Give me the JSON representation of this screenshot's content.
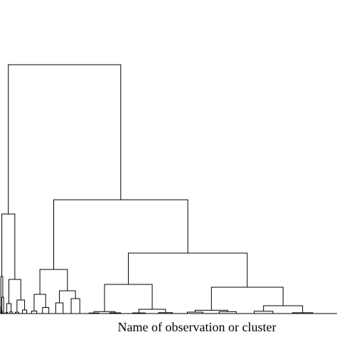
{
  "chart_data": {
    "type": "dendrogram",
    "title": "",
    "xlabel": "Name of observation or cluster",
    "ylabel": "",
    "grid": false,
    "line_color": "#000000",
    "observation_count": 40,
    "merges": [
      [
        0,
        1,
        0.7
      ],
      [
        2,
        3,
        1.0
      ],
      [
        4,
        5,
        0.9
      ],
      [
        6,
        7,
        1.3
      ],
      [
        8,
        9,
        2.0
      ],
      [
        10,
        11,
        2.6
      ],
      [
        12,
        13,
        3.2
      ],
      [
        14,
        15,
        1.1
      ],
      [
        16,
        17,
        0.8
      ],
      [
        18,
        19,
        1.7
      ],
      [
        20,
        21,
        4.1
      ],
      [
        22,
        23,
        0.6
      ],
      [
        24,
        25,
        1.4
      ],
      [
        26,
        27,
        2.2
      ],
      [
        28,
        29,
        1.9
      ],
      [
        30,
        31,
        5.0
      ],
      [
        32,
        33,
        3.5
      ],
      [
        34,
        35,
        8.5
      ],
      [
        36,
        37,
        15.0
      ],
      [
        38,
        39,
        21.0
      ],
      [
        40,
        41,
        2.8
      ],
      [
        42,
        43,
        6.0
      ],
      [
        44,
        45,
        4.6
      ],
      [
        46,
        47,
        11.0
      ],
      [
        48,
        49,
        9.0
      ],
      [
        50,
        51,
        23.0
      ],
      [
        52,
        53,
        14.0
      ],
      [
        54,
        55,
        19.0
      ],
      [
        56,
        57,
        27.0
      ],
      [
        58,
        59,
        32.0
      ],
      [
        60,
        61,
        41.0
      ],
      [
        62,
        63,
        37.0
      ],
      [
        64,
        65,
        52.0
      ],
      [
        66,
        67,
        48.0
      ],
      [
        68,
        69,
        62.0
      ],
      [
        70,
        71,
        85.0
      ],
      [
        72,
        73,
        140.0
      ],
      [
        74,
        75,
        160.0
      ],
      [
        76,
        77,
        350.0
      ]
    ],
    "ylim": [
      0,
      355
    ]
  }
}
